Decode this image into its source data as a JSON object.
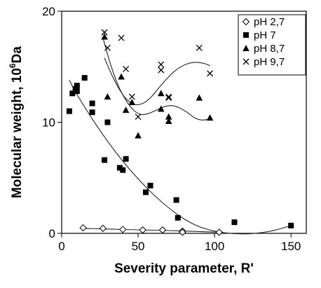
{
  "chart_data": {
    "type": "scatter",
    "xlabel": "Severity parameter, R'",
    "ylabel_prefix": "Molecular weight, 10",
    "ylabel_sup": "6",
    "ylabel_suffix": "Da",
    "xlim": [
      0,
      160
    ],
    "ylim": [
      0,
      20
    ],
    "x_ticks": [
      0,
      50,
      100,
      150
    ],
    "x_tick_labels": [
      "0",
      "50",
      "100",
      "150"
    ],
    "y_ticks": [
      0,
      10,
      20
    ],
    "y_tick_labels": [
      "0",
      "10",
      "20"
    ],
    "legend_position": "top-right",
    "grid": false,
    "series": [
      {
        "name": "pH 2,7",
        "marker": "diamond-open",
        "points": [
          [
            14,
            0.5
          ],
          [
            27,
            0.45
          ],
          [
            40,
            0.35
          ],
          [
            53,
            0.3
          ],
          [
            66,
            0.3
          ],
          [
            79,
            0.2
          ],
          [
            79,
            0.1
          ],
          [
            103,
            0.1
          ]
        ],
        "trend": [
          [
            14,
            0.45
          ],
          [
            40,
            0.35
          ],
          [
            70,
            0.25
          ],
          [
            103,
            0.1
          ]
        ]
      },
      {
        "name": "pH 7",
        "marker": "square-filled",
        "points": [
          [
            5,
            11
          ],
          [
            7,
            12.6
          ],
          [
            9,
            13
          ],
          [
            10,
            13.3
          ],
          [
            10,
            12.8
          ],
          [
            15,
            14
          ],
          [
            20,
            11.7
          ],
          [
            20,
            10.9
          ],
          [
            28,
            6.6
          ],
          [
            30,
            10
          ],
          [
            38,
            5.9
          ],
          [
            40,
            5.7
          ],
          [
            42,
            6.7
          ],
          [
            55,
            3.7
          ],
          [
            58,
            4.3
          ],
          [
            75,
            3
          ],
          [
            76,
            1.4
          ],
          [
            113,
            1
          ],
          [
            150,
            0.7
          ]
        ],
        "trend": [
          [
            5,
            13.8
          ],
          [
            10,
            12.5
          ],
          [
            20,
            10.3
          ],
          [
            30,
            8.3
          ],
          [
            40,
            6.5
          ],
          [
            50,
            4.9
          ],
          [
            60,
            3.5
          ],
          [
            70,
            2.3
          ],
          [
            80,
            1.3
          ],
          [
            90,
            0.6
          ],
          [
            100,
            0.2
          ],
          [
            110,
            0.0
          ],
          [
            120,
            -0.05
          ],
          [
            130,
            0.05
          ],
          [
            140,
            0.3
          ],
          [
            150,
            0.7
          ]
        ]
      },
      {
        "name": "pH 8,7",
        "marker": "triangle-filled",
        "points": [
          [
            28,
            17.7
          ],
          [
            30,
            12.3
          ],
          [
            39,
            14.1
          ],
          [
            42,
            11.1
          ],
          [
            46,
            11.8
          ],
          [
            50,
            8.8
          ],
          [
            65,
            12.6
          ],
          [
            65,
            11.2
          ],
          [
            70,
            10.5
          ],
          [
            70,
            10.1
          ],
          [
            90,
            12.2
          ],
          [
            97,
            10.4
          ]
        ],
        "trend": [
          [
            27,
            17.6
          ],
          [
            32,
            15.2
          ],
          [
            37,
            13.3
          ],
          [
            42,
            12.0
          ],
          [
            47,
            11.1
          ],
          [
            52,
            10.7
          ],
          [
            57,
            10.8
          ],
          [
            62,
            11.1
          ],
          [
            67,
            11.4
          ],
          [
            72,
            11.5
          ],
          [
            77,
            11.3
          ],
          [
            82,
            10.9
          ],
          [
            87,
            10.4
          ],
          [
            92,
            10.2
          ],
          [
            97,
            10.3
          ]
        ]
      },
      {
        "name": "pH 9,7",
        "marker": "x",
        "points": [
          [
            28,
            18.1
          ],
          [
            30,
            16.7
          ],
          [
            39,
            17.6
          ],
          [
            42,
            14.8
          ],
          [
            46,
            12.3
          ],
          [
            50,
            10.5
          ],
          [
            65,
            15.2
          ],
          [
            65,
            14.7
          ],
          [
            70,
            12.3
          ],
          [
            70,
            12.2
          ],
          [
            90,
            16.7
          ],
          [
            97,
            14.4
          ]
        ],
        "trend": [
          [
            28,
            15.8
          ],
          [
            33,
            14.2
          ],
          [
            38,
            12.9
          ],
          [
            43,
            12.0
          ],
          [
            48,
            11.6
          ],
          [
            53,
            11.7
          ],
          [
            58,
            12.2
          ],
          [
            63,
            13.0
          ],
          [
            68,
            13.8
          ],
          [
            73,
            14.5
          ],
          [
            78,
            15.0
          ],
          [
            83,
            15.3
          ],
          [
            88,
            15.4
          ],
          [
            93,
            15.3
          ],
          [
            97,
            15.1
          ]
        ]
      }
    ]
  }
}
